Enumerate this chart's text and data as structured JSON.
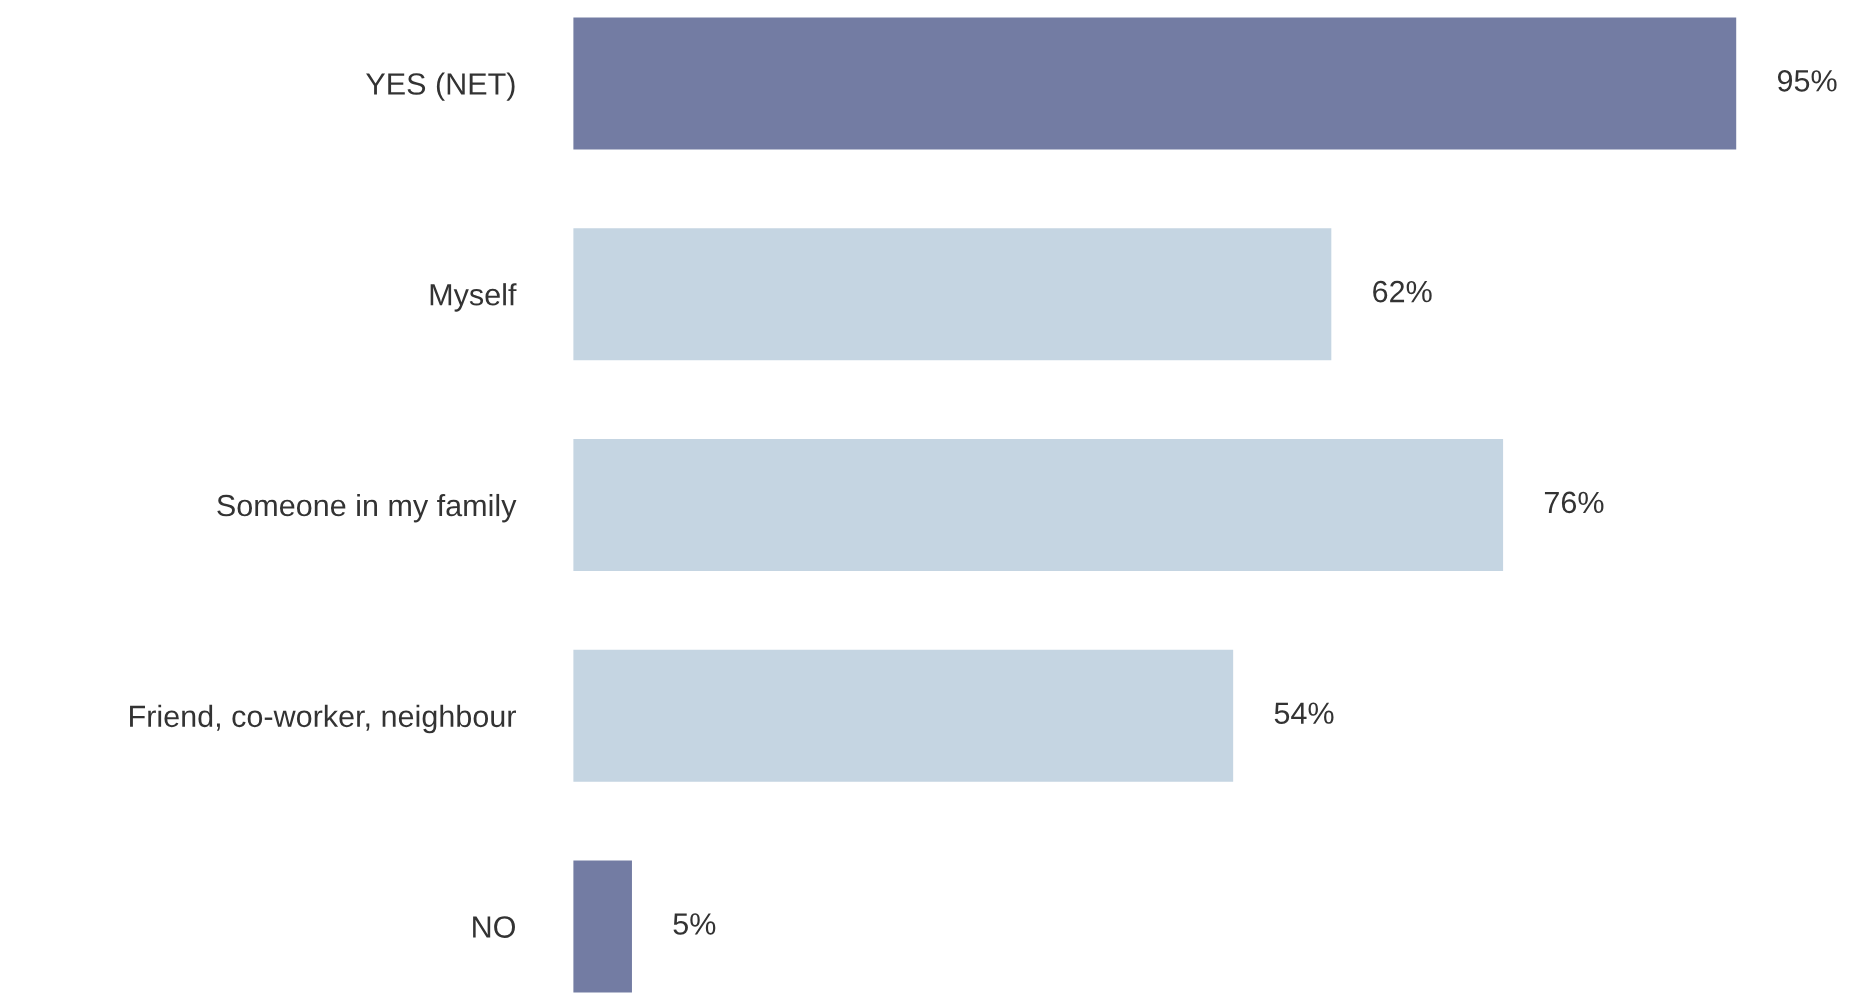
{
  "chart_data": {
    "type": "bar",
    "orientation": "horizontal",
    "categories": [
      "YES (NET)",
      "Myself",
      "Someone in my family",
      "Friend, co-worker, neighbour",
      "NO"
    ],
    "values": [
      95,
      62,
      76,
      54,
      5
    ],
    "colors": [
      "#737ca3",
      "#c5d5e2",
      "#c5d5e2",
      "#c5d5e2",
      "#737ca3"
    ],
    "value_labels": [
      "95%",
      "62%",
      "76%",
      "54%",
      "5%"
    ],
    "grid": false,
    "legend": false,
    "tick_labels": "y"
  }
}
